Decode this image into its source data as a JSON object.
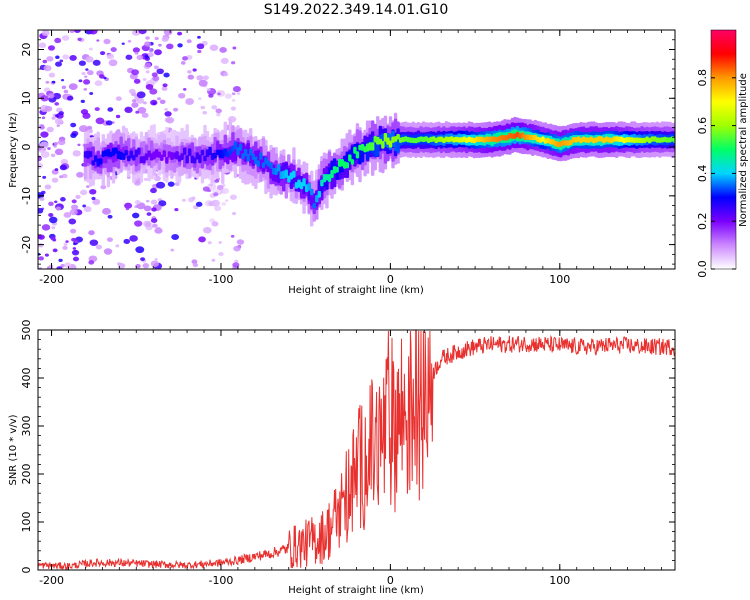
{
  "title": "S149.2022.349.14.01.G10",
  "chart_data": [
    {
      "type": "heatmap",
      "xlabel": "Height of straight line (km)",
      "ylabel": "Frequency (Hz)",
      "xlim": [
        -208,
        168
      ],
      "ylim": [
        -25,
        24
      ],
      "xticks": [
        -200,
        -100,
        0,
        100
      ],
      "yticks": [
        -20,
        -10,
        0,
        10,
        20
      ],
      "colorbar": {
        "label": "Normalized spectral amplitude",
        "range": [
          0,
          1
        ],
        "ticks": [
          "0.0",
          "0.2",
          "0.4",
          "0.6",
          "0.8"
        ],
        "colors": [
          "#ffffff",
          "#cc88ff",
          "#7a00ff",
          "#0000ff",
          "#00d5ff",
          "#00ff66",
          "#a0ff00",
          "#ffff00",
          "#ff9900",
          "#ff0000",
          "#ff0066"
        ]
      },
      "ridge": [
        {
          "x": -180,
          "y": -2.0,
          "amp": 0.25
        },
        {
          "x": -170,
          "y": -2.5,
          "amp": 0.3
        },
        {
          "x": -160,
          "y": -1.0,
          "amp": 0.3
        },
        {
          "x": -150,
          "y": -2.0,
          "amp": 0.25
        },
        {
          "x": -140,
          "y": -1.0,
          "amp": 0.2
        },
        {
          "x": -130,
          "y": -2.0,
          "amp": 0.2
        },
        {
          "x": -120,
          "y": -1.5,
          "amp": 0.25
        },
        {
          "x": -110,
          "y": -2.0,
          "amp": 0.25
        },
        {
          "x": -100,
          "y": -1.0,
          "amp": 0.3
        },
        {
          "x": -90,
          "y": -0.5,
          "amp": 0.35
        },
        {
          "x": -80,
          "y": -2.0,
          "amp": 0.35
        },
        {
          "x": -70,
          "y": -4.5,
          "amp": 0.35
        },
        {
          "x": -60,
          "y": -6.0,
          "amp": 0.4
        },
        {
          "x": -50,
          "y": -8.0,
          "amp": 0.4
        },
        {
          "x": -45,
          "y": -11.0,
          "amp": 0.35
        },
        {
          "x": -40,
          "y": -7.0,
          "amp": 0.45
        },
        {
          "x": -30,
          "y": -4.0,
          "amp": 0.5
        },
        {
          "x": -20,
          "y": -1.5,
          "amp": 0.5
        },
        {
          "x": -10,
          "y": 0.5,
          "amp": 0.55
        },
        {
          "x": 0,
          "y": 1.5,
          "amp": 0.6
        },
        {
          "x": 10,
          "y": 1.5,
          "amp": 0.55
        },
        {
          "x": 20,
          "y": 1.5,
          "amp": 0.55
        },
        {
          "x": 40,
          "y": 1.5,
          "amp": 0.65
        },
        {
          "x": 60,
          "y": 1.5,
          "amp": 0.8
        },
        {
          "x": 75,
          "y": 2.5,
          "amp": 0.85
        },
        {
          "x": 90,
          "y": 1.5,
          "amp": 0.7
        },
        {
          "x": 100,
          "y": 0.5,
          "amp": 0.8
        },
        {
          "x": 110,
          "y": 1.5,
          "amp": 0.75
        },
        {
          "x": 130,
          "y": 1.5,
          "amp": 0.75
        },
        {
          "x": 150,
          "y": 1.5,
          "amp": 0.6
        },
        {
          "x": 168,
          "y": 1.5,
          "amp": 0.55
        }
      ]
    },
    {
      "type": "line",
      "xlabel": "Height of straight line (km)",
      "ylabel": "SNR (10 * v/v)",
      "xlim": [
        -208,
        168
      ],
      "ylim": [
        0,
        500
      ],
      "xticks": [
        -200,
        -100,
        0,
        100
      ],
      "yticks": [
        0,
        100,
        200,
        300,
        400,
        500
      ],
      "series": [
        {
          "color": "#e8312f",
          "x": [
            -208,
            -190,
            -175,
            -160,
            -140,
            -120,
            -100,
            -90,
            -80,
            -70,
            -60,
            -50,
            -40,
            -35,
            -30,
            -25,
            -20,
            -15,
            -10,
            -5,
            0,
            5,
            10,
            15,
            20,
            25,
            30,
            40,
            50,
            60,
            70,
            80,
            90,
            100,
            110,
            120,
            130,
            140,
            150,
            160,
            168
          ],
          "y": [
            10,
            8,
            15,
            15,
            12,
            10,
            15,
            20,
            28,
            35,
            45,
            55,
            70,
            90,
            120,
            160,
            200,
            230,
            250,
            270,
            300,
            320,
            330,
            350,
            380,
            410,
            440,
            455,
            465,
            470,
            470,
            472,
            470,
            468,
            465,
            465,
            468,
            468,
            465,
            465,
            465
          ]
        }
      ]
    }
  ]
}
